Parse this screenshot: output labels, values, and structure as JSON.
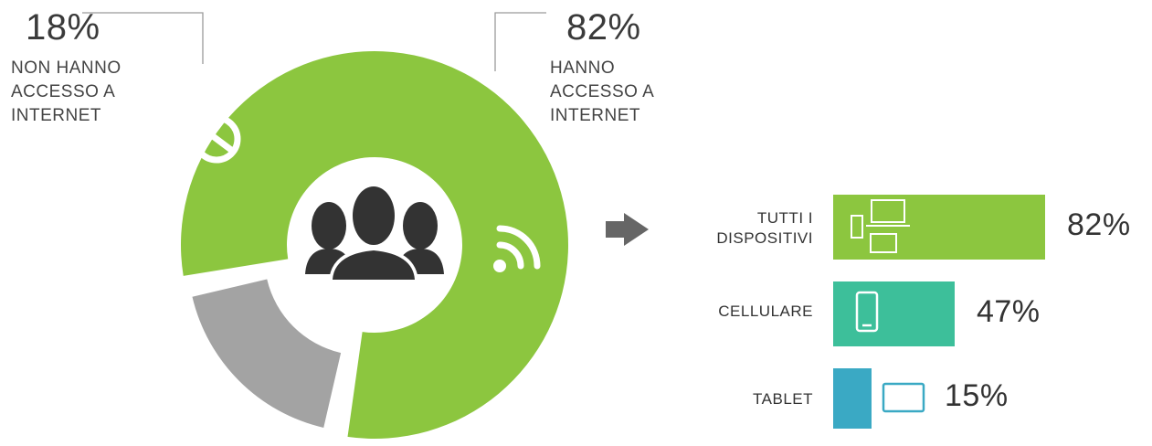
{
  "chart_data": [
    {
      "type": "pie",
      "slices": [
        {
          "value": 82,
          "label": "82%",
          "caption": "HANNO\nACCESSO A\nINTERNET",
          "color": "#8cc63f"
        },
        {
          "value": 18,
          "label": "18%",
          "caption": "NON HANNO\nACCESSO A\nINTERNET",
          "color": "#a3a3a3"
        }
      ]
    },
    {
      "type": "bar",
      "categories": [
        "TUTTI I\nDISPOSITIVI",
        "CELLULARE",
        "TABLET"
      ],
      "values": [
        82,
        47,
        15
      ],
      "value_labels": [
        "82%",
        "47%",
        "15%"
      ],
      "colors": [
        "#8cc63f",
        "#3dbf9a",
        "#3aa9c4"
      ],
      "icons": [
        "devices-icon",
        "phone-icon",
        "tablet-icon"
      ]
    }
  ],
  "icons": {
    "center": "people-group-icon",
    "blocked": "no-access-icon",
    "wifi": "wifi-icon",
    "arrow": "arrow-right-icon"
  }
}
